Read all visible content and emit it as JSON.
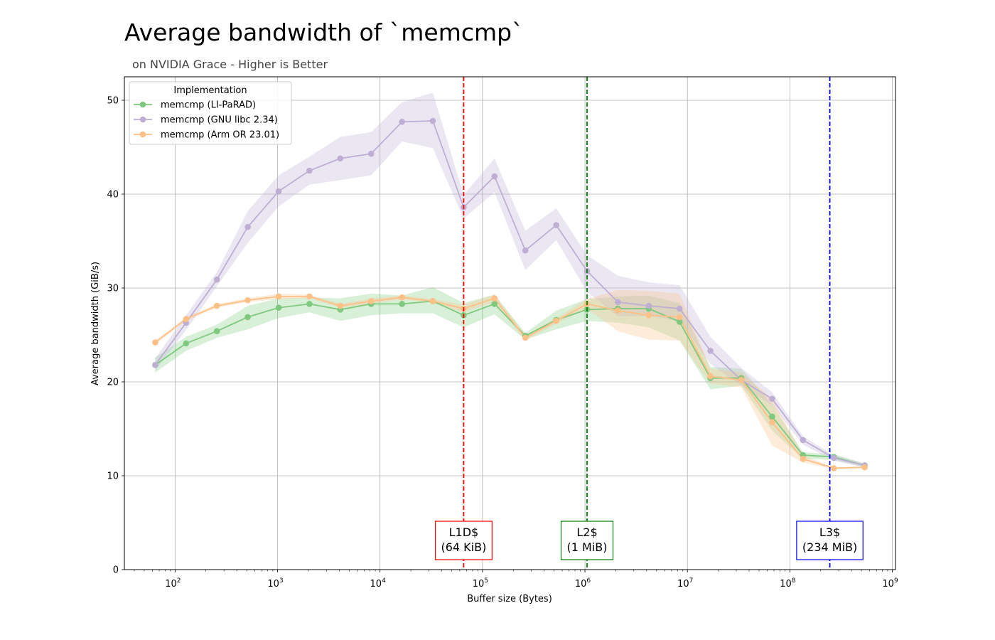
{
  "chart_data": {
    "type": "line",
    "title": "Average bandwidth of `memcmp`",
    "subtitle": "on NVIDIA Grace - Higher is Better",
    "xlabel": "Buffer size (Bytes)",
    "ylabel": "Average bandwidth (GiB/s)",
    "x_scale": "log2",
    "xlim": [
      32,
      1073741824
    ],
    "ylim": [
      0,
      52.5
    ],
    "grid": true,
    "legend": {
      "title": "Implementation",
      "position": "upper-left"
    },
    "x_ticks": [
      {
        "value": 100,
        "base": "10",
        "exp": "2"
      },
      {
        "value": 1000,
        "base": "10",
        "exp": "3"
      },
      {
        "value": 10000,
        "base": "10",
        "exp": "4"
      },
      {
        "value": 100000,
        "base": "10",
        "exp": "5"
      },
      {
        "value": 1000000,
        "base": "10",
        "exp": "6"
      },
      {
        "value": 10000000,
        "base": "10",
        "exp": "7"
      },
      {
        "value": 100000000,
        "base": "10",
        "exp": "8"
      },
      {
        "value": 1000000000,
        "base": "10",
        "exp": "9"
      }
    ],
    "y_ticks": [
      0,
      10,
      20,
      30,
      40,
      50
    ],
    "x": [
      64,
      128,
      256,
      512,
      1024,
      2048,
      4096,
      8192,
      16384,
      32768,
      65536,
      131072,
      262144,
      524288,
      1048576,
      2097152,
      4194304,
      8388608,
      16777216,
      33554432,
      67108864,
      134217728,
      268435456,
      536870912
    ],
    "series": [
      {
        "name": "memcmp (LI-PaRAD)",
        "color": "#7fc97f",
        "values": [
          21.8,
          24.1,
          25.4,
          26.9,
          27.9,
          28.3,
          27.7,
          28.3,
          28.3,
          28.6,
          27.1,
          28.3,
          24.9,
          26.6,
          27.7,
          27.8,
          27.8,
          26.4,
          20.4,
          20.4,
          16.3,
          12.2,
          12.0,
          11.1
        ],
        "band_low": [
          21.0,
          23.3,
          24.7,
          25.6,
          26.8,
          27.4,
          26.5,
          27.1,
          27.3,
          27.3,
          25.8,
          27.2,
          24.5,
          25.6,
          26.5,
          26.3,
          25.8,
          24.4,
          19.2,
          19.6,
          14.8,
          11.8,
          11.7,
          10.9
        ],
        "band_high": [
          22.6,
          24.8,
          26.1,
          28.1,
          28.9,
          29.0,
          28.9,
          29.4,
          29.2,
          30.1,
          28.4,
          29.3,
          25.2,
          27.6,
          28.8,
          29.1,
          29.2,
          28.4,
          21.6,
          21.4,
          17.6,
          12.5,
          12.3,
          11.3
        ]
      },
      {
        "name": "memcmp (GNU libc 2.34)",
        "color": "#beaed4",
        "values": [
          21.8,
          26.3,
          30.9,
          36.5,
          40.3,
          42.5,
          43.8,
          44.3,
          47.7,
          47.8,
          38.6,
          41.9,
          34.0,
          36.7,
          31.8,
          28.5,
          28.1,
          27.8,
          23.3,
          20.2,
          18.2,
          13.8,
          11.9,
          11.1
        ],
        "band_low": [
          21.2,
          25.5,
          30.2,
          34.8,
          38.7,
          41.0,
          41.5,
          42.0,
          45.6,
          44.9,
          37.4,
          40.2,
          31.9,
          35.1,
          29.6,
          27.0,
          27.0,
          26.5,
          21.9,
          19.6,
          17.5,
          13.3,
          11.6,
          10.9
        ],
        "band_high": [
          22.5,
          27.1,
          31.7,
          38.2,
          42.0,
          44.0,
          46.1,
          46.6,
          49.8,
          50.8,
          39.9,
          43.8,
          36.1,
          38.5,
          33.5,
          31.3,
          30.6,
          30.3,
          24.8,
          21.5,
          18.9,
          14.2,
          12.2,
          11.3
        ]
      },
      {
        "name": "memcmp (Arm OR 23.01)",
        "color": "#fdc086",
        "values": [
          24.2,
          26.7,
          28.1,
          28.7,
          29.1,
          29.1,
          28.1,
          28.6,
          29.0,
          28.6,
          27.8,
          28.9,
          24.7,
          26.5,
          28.3,
          27.6,
          27.1,
          26.9,
          20.6,
          20.2,
          15.7,
          11.8,
          10.8,
          10.9
        ],
        "band_low": [
          24.0,
          26.5,
          27.9,
          28.5,
          28.8,
          28.9,
          27.9,
          28.3,
          28.8,
          28.4,
          27.4,
          28.5,
          24.4,
          26.2,
          27.8,
          25.4,
          24.5,
          24.4,
          19.8,
          19.4,
          13.2,
          11.4,
          10.7,
          10.8
        ],
        "band_high": [
          24.4,
          26.9,
          28.3,
          28.9,
          29.4,
          29.3,
          28.3,
          28.9,
          29.2,
          28.8,
          28.2,
          29.3,
          25.0,
          26.8,
          28.8,
          29.8,
          29.7,
          29.4,
          21.4,
          21.0,
          18.2,
          12.2,
          10.9,
          11.0
        ]
      }
    ],
    "vlines": [
      {
        "x": 65536,
        "color": "#ff0000",
        "label_line1": "L1D$",
        "label_line2": "(64 KiB)"
      },
      {
        "x": 1048576,
        "color": "#008000",
        "label_line1": "L2$",
        "label_line2": "(1 MiB)"
      },
      {
        "x": 245366784,
        "color": "#0000ff",
        "label_line1": "L3$",
        "label_line2": "(234 MiB)"
      }
    ]
  }
}
